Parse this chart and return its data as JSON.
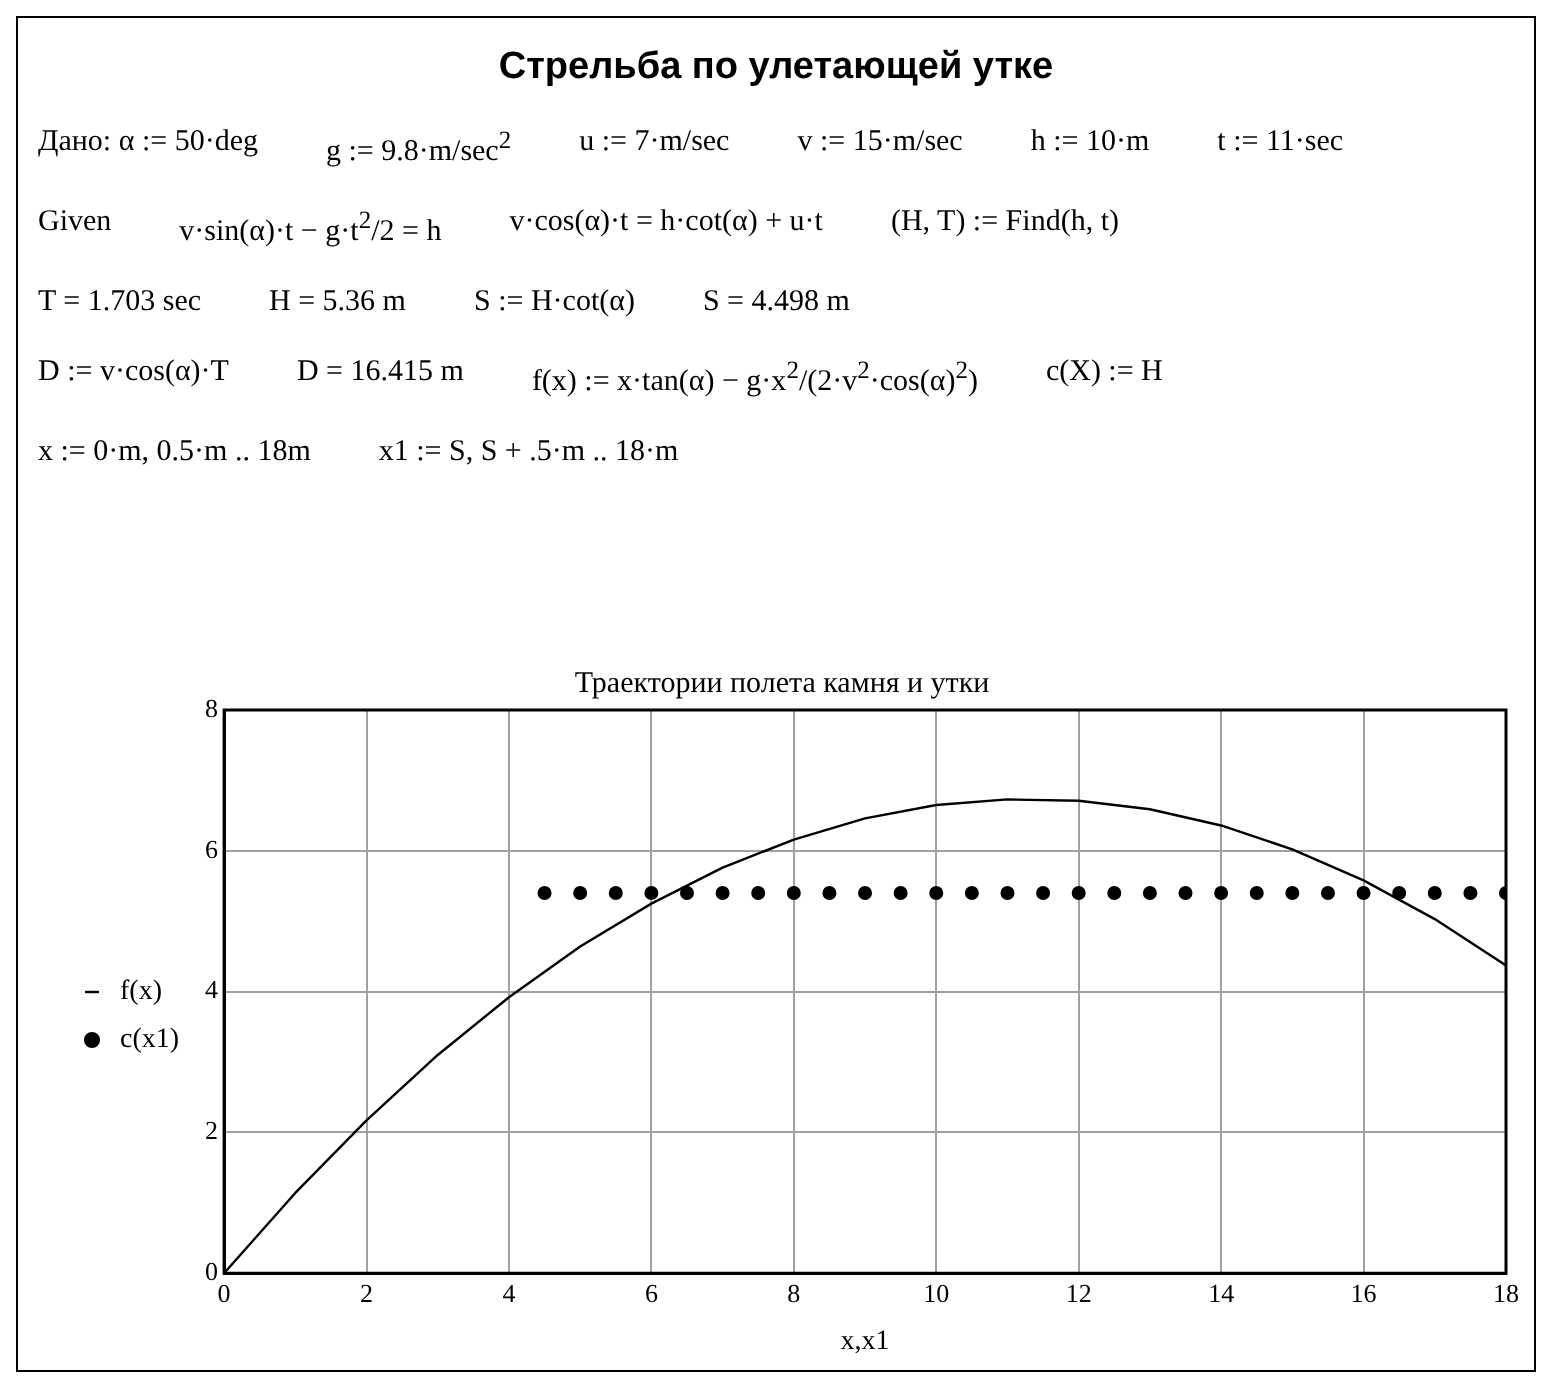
{
  "chart_data": {
    "type": "line",
    "title": "Стрельба по улетающей утке",
    "subtitle": "Траектории полета камня и утки",
    "xlabel": "x,x1",
    "annotations": [
      "Дано:  α := 50·deg",
      "g := 9.8·m/sec$^{2}$",
      "u := 7·m/sec",
      "v := 15·m/sec",
      "h := 10·m",
      "t := 11·sec",
      "Given",
      "v·sin(α)·t − g·t$^{2}$/2 = h",
      "v·cos(α)·t = h·cot(α) + u·t",
      "(H, T) := Find(h, t)",
      "T = 1.703 sec",
      "H = 5.36 m",
      "S := H·cot(α)",
      "S = 4.498 m",
      "D := v·cos(α)·T",
      "D = 16.415 m",
      "f(x) := x·tan(α) − g·x$^{2}$/(2·v$^{2}$·cos(α)$^{2}$)",
      "c(X) := H",
      "x := 0·m, 0.5·m .. 18m",
      "x1 := S, S + .5·m .. 18·m"
    ],
    "series": [
      {
        "name": "f(x)",
        "color": "#000000",
        "marker": "none",
        "x": [
          0,
          1,
          2,
          3,
          4,
          5,
          6,
          7,
          8,
          9,
          10,
          11,
          12,
          13,
          14,
          15,
          16,
          17,
          18
        ],
        "values": [
          0,
          1.14,
          2.17,
          3.1,
          3.92,
          4.64,
          5.25,
          5.76,
          6.16,
          6.46,
          6.65,
          6.73,
          6.71,
          6.59,
          6.36,
          6.02,
          5.58,
          5.03,
          4.37
        ]
      },
      {
        "name": "c(x1)",
        "type": "scatter",
        "color": "#000000",
        "marker": "circle",
        "x": [
          4.5,
          5,
          5.5,
          6,
          6.5,
          7,
          7.5,
          8,
          8.5,
          9,
          9.5,
          10,
          10.5,
          11,
          11.5,
          12,
          12.5,
          13,
          13.5,
          14,
          14.5,
          15,
          15.5,
          16,
          16.5,
          17,
          17.5,
          18
        ],
        "values": [
          5.4,
          5.4,
          5.4,
          5.4,
          5.4,
          5.4,
          5.4,
          5.4,
          5.4,
          5.4,
          5.4,
          5.4,
          5.4,
          5.4,
          5.4,
          5.4,
          5.4,
          5.4,
          5.4,
          5.4,
          5.4,
          5.4,
          5.4,
          5.4,
          5.4,
          5.4,
          5.4,
          5.4
        ]
      }
    ],
    "xlim": [
      0,
      18
    ],
    "xticks": [
      0,
      2,
      4,
      6,
      8,
      10,
      12,
      14,
      16,
      18
    ],
    "ylim": [
      0,
      8
    ],
    "yticks": [
      0,
      2,
      4,
      6,
      8
    ],
    "grid": true,
    "legend": "left"
  }
}
